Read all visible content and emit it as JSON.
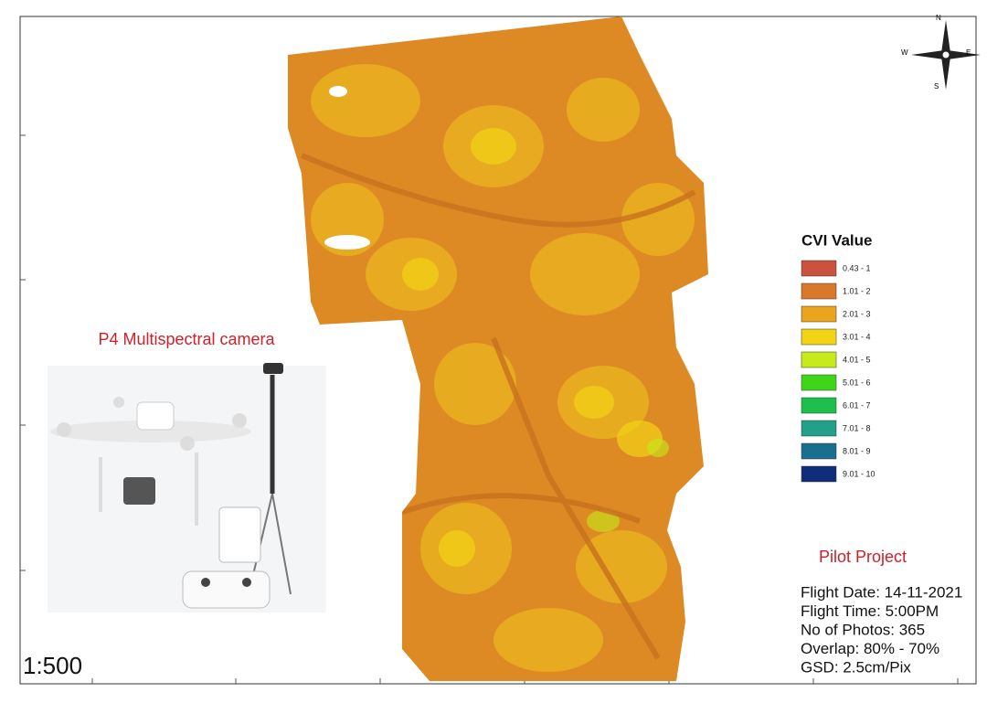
{
  "map": {
    "legend": {
      "title": "CVI Value",
      "items": [
        {
          "label": "0.43 - 1",
          "color": "#c9533e"
        },
        {
          "label": "1.01 - 2",
          "color": "#d9782a"
        },
        {
          "label": "2.01 - 3",
          "color": "#e9a51e"
        },
        {
          "label": "3.01 - 4",
          "color": "#f2d316"
        },
        {
          "label": "4.01 - 5",
          "color": "#c7ea1a"
        },
        {
          "label": "5.01 - 6",
          "color": "#3fd61a"
        },
        {
          "label": "6.01 - 7",
          "color": "#1fbf4c"
        },
        {
          "label": "7.01 - 8",
          "color": "#22a08a"
        },
        {
          "label": "8.01 - 9",
          "color": "#1a6e8e"
        },
        {
          "label": "9.01 - 10",
          "color": "#0f2d7a"
        }
      ]
    },
    "camera_label": "P4 Multispectral camera",
    "project": {
      "title": "Pilot Project",
      "lines": [
        "Flight Date: 14-11-2021",
        "Flight Time: 5:00PM",
        "No of Photos: 365",
        "Overlap: 80% - 70%",
        "GSD: 2.5cm/Pix"
      ]
    },
    "scale": "1:500",
    "compass": {
      "n": "N",
      "s": "S",
      "e": "E",
      "w": "W"
    }
  }
}
